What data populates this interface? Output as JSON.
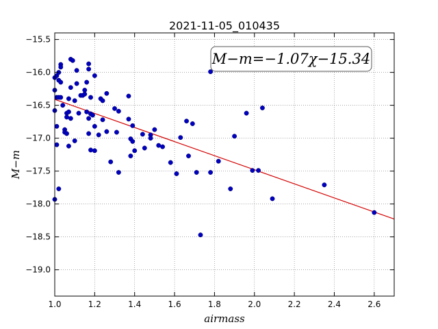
{
  "chart_data": {
    "type": "scatter",
    "title": "2021-11-05_010435",
    "xlabel": "airmass",
    "ylabel": "M−m",
    "xlim": [
      1.0,
      2.7
    ],
    "ylim": [
      -19.4,
      -15.4
    ],
    "y_inverted": true,
    "xticks": [
      1.0,
      1.2,
      1.4,
      1.6,
      1.8,
      2.0,
      2.2,
      2.4,
      2.6
    ],
    "xtick_labels": [
      "1.0",
      "1.2",
      "1.4",
      "1.6",
      "1.8",
      "2.0",
      "2.2",
      "2.4",
      "2.6"
    ],
    "yticks": [
      -15.5,
      -16.0,
      -16.5,
      -17.0,
      -17.5,
      -18.0,
      -18.5,
      -19.0
    ],
    "ytick_labels": [
      "−15.5",
      "−16.0",
      "−16.5",
      "−17.0",
      "−17.5",
      "−18.0",
      "−18.5",
      "−19.0"
    ],
    "grid": true,
    "point_color": "#0000c0",
    "fit_color": "#d40000",
    "annotation": "M−m=−1.07χ−15.34",
    "fit": {
      "slope": -1.07,
      "intercept": -15.34
    },
    "points": [
      [
        1.0,
        -16.08
      ],
      [
        1.0,
        -16.27
      ],
      [
        1.0,
        -16.58
      ],
      [
        1.0,
        -17.93
      ],
      [
        1.01,
        -16.05
      ],
      [
        1.01,
        -16.38
      ],
      [
        1.01,
        -16.82
      ],
      [
        1.01,
        -17.1
      ],
      [
        1.02,
        -16.0
      ],
      [
        1.02,
        -16.12
      ],
      [
        1.02,
        -16.38
      ],
      [
        1.02,
        -17.77
      ],
      [
        1.03,
        -15.88
      ],
      [
        1.03,
        -15.92
      ],
      [
        1.03,
        -16.15
      ],
      [
        1.03,
        -16.38
      ],
      [
        1.04,
        -16.5
      ],
      [
        1.05,
        -16.87
      ],
      [
        1.05,
        -16.91
      ],
      [
        1.06,
        -16.62
      ],
      [
        1.06,
        -16.68
      ],
      [
        1.06,
        -16.93
      ],
      [
        1.07,
        -16.4
      ],
      [
        1.07,
        -16.6
      ],
      [
        1.07,
        -17.12
      ],
      [
        1.08,
        -15.8
      ],
      [
        1.08,
        -16.23
      ],
      [
        1.08,
        -16.7
      ],
      [
        1.09,
        -15.82
      ],
      [
        1.1,
        -16.43
      ],
      [
        1.1,
        -17.04
      ],
      [
        1.11,
        -15.97
      ],
      [
        1.11,
        -16.17
      ],
      [
        1.12,
        -16.62
      ],
      [
        1.13,
        -16.35
      ],
      [
        1.14,
        -16.35
      ],
      [
        1.15,
        -16.27
      ],
      [
        1.15,
        -16.33
      ],
      [
        1.16,
        -16.15
      ],
      [
        1.16,
        -16.6
      ],
      [
        1.17,
        -15.87
      ],
      [
        1.17,
        -15.95
      ],
      [
        1.17,
        -16.7
      ],
      [
        1.17,
        -16.93
      ],
      [
        1.18,
        -16.38
      ],
      [
        1.18,
        -16.63
      ],
      [
        1.18,
        -17.18
      ],
      [
        1.19,
        -16.65
      ],
      [
        1.2,
        -16.05
      ],
      [
        1.2,
        -16.82
      ],
      [
        1.2,
        -17.19
      ],
      [
        1.22,
        -16.95
      ],
      [
        1.23,
        -16.4
      ],
      [
        1.24,
        -16.43
      ],
      [
        1.24,
        -16.72
      ],
      [
        1.26,
        -16.32
      ],
      [
        1.26,
        -16.9
      ],
      [
        1.28,
        -17.36
      ],
      [
        1.3,
        -16.55
      ],
      [
        1.31,
        -16.91
      ],
      [
        1.32,
        -16.59
      ],
      [
        1.32,
        -17.52
      ],
      [
        1.37,
        -16.36
      ],
      [
        1.37,
        -16.71
      ],
      [
        1.38,
        -17.01
      ],
      [
        1.38,
        -17.27
      ],
      [
        1.39,
        -16.81
      ],
      [
        1.39,
        -17.05
      ],
      [
        1.4,
        -17.19
      ],
      [
        1.44,
        -16.94
      ],
      [
        1.45,
        -17.15
      ],
      [
        1.48,
        -16.95
      ],
      [
        1.48,
        -17.0
      ],
      [
        1.5,
        -16.87
      ],
      [
        1.52,
        -17.11
      ],
      [
        1.54,
        -17.13
      ],
      [
        1.58,
        -17.37
      ],
      [
        1.61,
        -17.54
      ],
      [
        1.63,
        -16.99
      ],
      [
        1.66,
        -16.74
      ],
      [
        1.67,
        -17.27
      ],
      [
        1.69,
        -16.78
      ],
      [
        1.71,
        -17.52
      ],
      [
        1.73,
        -18.47
      ],
      [
        1.78,
        -15.99
      ],
      [
        1.78,
        -17.52
      ],
      [
        1.82,
        -17.35
      ],
      [
        1.88,
        -17.77
      ],
      [
        1.9,
        -16.97
      ],
      [
        1.96,
        -16.62
      ],
      [
        1.99,
        -17.49
      ],
      [
        2.02,
        -17.49
      ],
      [
        2.04,
        -16.54
      ],
      [
        2.09,
        -17.92
      ],
      [
        2.35,
        -17.71
      ],
      [
        2.6,
        -18.13
      ]
    ]
  }
}
